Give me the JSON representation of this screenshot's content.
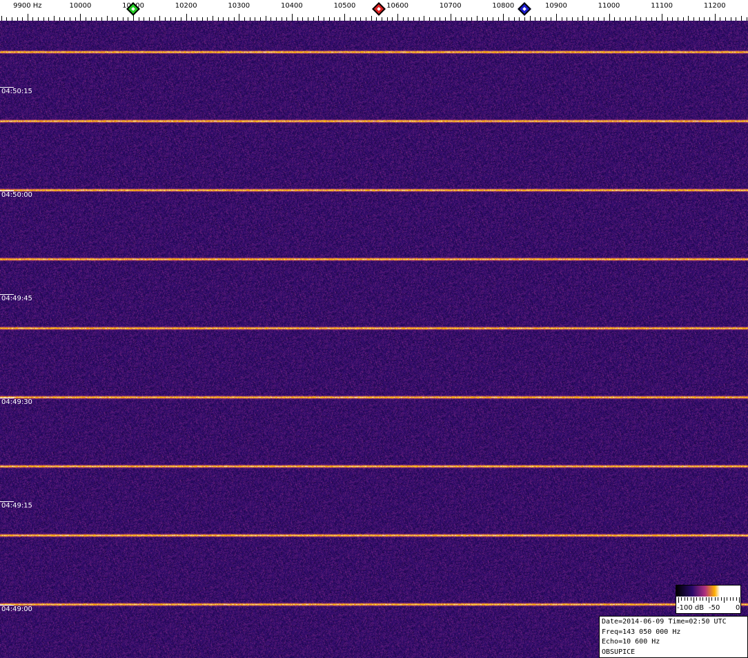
{
  "chart_data": {
    "type": "heatmap",
    "x_axis": {
      "unit": "Hz",
      "ticks": [
        9900,
        10000,
        10100,
        10200,
        10300,
        10400,
        10500,
        10600,
        10700,
        10800,
        10900,
        11000,
        11100,
        11200
      ],
      "first_label": "9900 Hz",
      "range": [
        9848,
        11263
      ]
    },
    "y_axis": {
      "ticks": [
        "04:50:15",
        "04:50:00",
        "04:49:45",
        "04:49:30",
        "04:49:15",
        "04:49:00"
      ],
      "direction": "time decreasing downward"
    },
    "markers": [
      {
        "freq": 10100,
        "color": "#22cc22"
      },
      {
        "freq": 10565,
        "color": "#dd2222"
      },
      {
        "freq": 10840,
        "color": "#1a1acc"
      }
    ],
    "colorbar": {
      "labels": [
        "-100 dB",
        "-50",
        "0"
      ],
      "range": [
        -100,
        0
      ],
      "unit": "dB",
      "colormap": [
        "#000000",
        "#2a0a6a",
        "#b03080",
        "#ffb000",
        "#ffffff"
      ]
    },
    "background_color": "#3a1a7a"
  },
  "info": {
    "line1": "Date=2014-06-09 Time=02:50 UTC",
    "line2": "Freq=143 050 000 Hz",
    "line3": "Echo=10 600 Hz",
    "line4": "OBSUPICE"
  }
}
